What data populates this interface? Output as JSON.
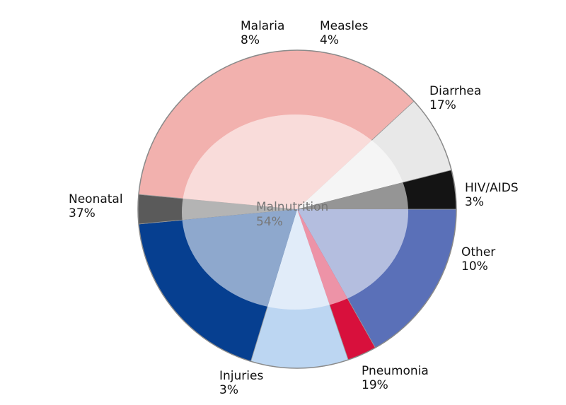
{
  "chart_data": {
    "type": "pie",
    "title": "",
    "slices": [
      {
        "name": "Diarrhea",
        "value": 17,
        "label": "17%",
        "color": "#5a70b8"
      },
      {
        "name": "HIV/AIDS",
        "value": 3,
        "label": "3%",
        "color": "#d8103c"
      },
      {
        "name": "Other",
        "value": 10,
        "label": "10%",
        "color": "#bcd6f2"
      },
      {
        "name": "Pneumonia",
        "value": 19,
        "label": "19%",
        "color": "#063f90"
      },
      {
        "name": "Injuries",
        "value": 3,
        "label": "3%",
        "color": "#5a5a5a"
      },
      {
        "name": "Neonatal",
        "value": 37,
        "label": "37%",
        "color": "#f2b1ae"
      },
      {
        "name": "Malaria",
        "value": 8,
        "label": "8%",
        "color": "#e8e8e8"
      },
      {
        "name": "Measles",
        "value": 4,
        "label": "4%",
        "color": "#141414"
      }
    ],
    "overlay": {
      "name": "Malnutrition",
      "value": 54,
      "label": "54%"
    },
    "start_angle_deg": 0,
    "direction": "clockwise",
    "legend": "none"
  }
}
